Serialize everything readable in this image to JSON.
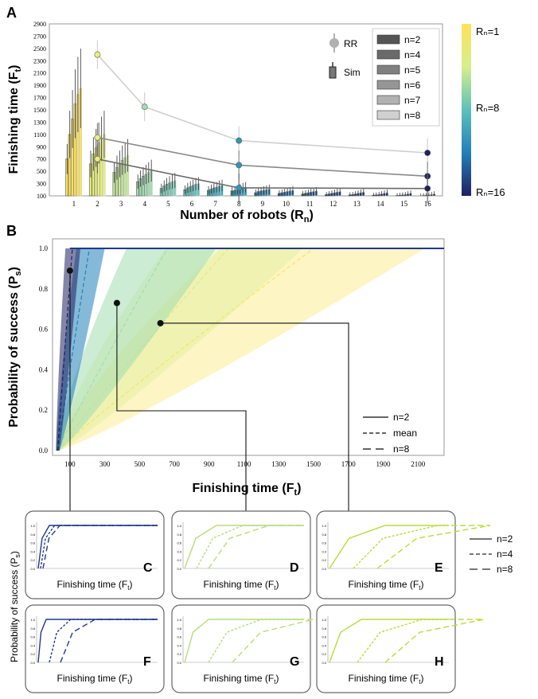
{
  "colors": {
    "viridis_like": [
      "#fde25a",
      "#e8f07a",
      "#c7e89a",
      "#a3dcb0",
      "#7fcfb8",
      "#5ec0bb",
      "#40aebd",
      "#2c97bc",
      "#2180b8",
      "#1c6aae",
      "#1a56a2",
      "#1a4595",
      "#1b3885",
      "#1d2e76",
      "#1e266a",
      "#1f2060"
    ],
    "rr_marker": "#b0b0b0",
    "grays": [
      "#555555",
      "#6a6a6a",
      "#808080",
      "#969696",
      "#b2b2b2",
      "#d0d0d0"
    ]
  },
  "panel_A": {
    "letter": "A",
    "ylabel": "Finishing time (F",
    "ylabel_sub": "t",
    "ylabel_end": ")",
    "xlabel": "Number of robots (R",
    "xlabel_sub": "n",
    "xlabel_end": ")",
    "legend_markers": [
      {
        "label": "RR"
      },
      {
        "label": "Sim"
      }
    ],
    "legend_n": [
      "n=2",
      "n=4",
      "n=5",
      "n=6",
      "n=7",
      "n=8"
    ],
    "colorbar_labels": [
      "Rₙ=1",
      "Rₙ=8",
      "Rₙ=16"
    ]
  },
  "panel_B": {
    "letter": "B",
    "ylabel": "Probability of success (P",
    "ylabel_sub": "s",
    "ylabel_end": ")",
    "xlabel": "Finishing time (F",
    "xlabel_sub": "t",
    "xlabel_end": ")",
    "legend": [
      "n=2",
      "mean",
      "n=8"
    ]
  },
  "small_panels": {
    "ylabel": "Probability of success (P",
    "ylabel_sub": "s",
    "ylabel_end": ")",
    "xlabel": "Finishing time (F",
    "xlabel_sub": "t",
    "xlabel_end": ")",
    "letters": [
      "C",
      "D",
      "E",
      "F",
      "G",
      "H"
    ],
    "legend": [
      "n=2",
      "n=4",
      "n=8"
    ]
  },
  "chart_data": [
    {
      "type": "bar",
      "panel": "A",
      "title": "",
      "xlabel": "Number of robots (Rn)",
      "ylabel": "Finishing time (Ft)",
      "categories": [
        "1",
        "2",
        "3",
        "4",
        "5",
        "6",
        "7",
        "8",
        "9",
        "10",
        "11",
        "12",
        "13",
        "14",
        "15",
        "16"
      ],
      "yticks": [
        100,
        300,
        500,
        700,
        900,
        1100,
        1300,
        1500,
        1700,
        1900,
        2100,
        2300,
        2500,
        2700,
        2900
      ],
      "ylim": [
        100,
        2900
      ],
      "series": [
        {
          "name": "n=2",
          "values": [
            700,
            620,
            480,
            330,
            220,
            200,
            190,
            180,
            150,
            140,
            130,
            120,
            115,
            110,
            105,
            100
          ]
        },
        {
          "name": "n=4",
          "values": [
            1100,
            780,
            560,
            380,
            260,
            230,
            210,
            190,
            170,
            150,
            140,
            130,
            120,
            115,
            110,
            105
          ]
        },
        {
          "name": "n=5",
          "values": [
            1350,
            880,
            620,
            420,
            290,
            250,
            230,
            200,
            180,
            160,
            150,
            140,
            130,
            120,
            115,
            110
          ]
        },
        {
          "name": "n=6",
          "values": [
            1600,
            960,
            680,
            450,
            310,
            270,
            240,
            215,
            190,
            170,
            160,
            150,
            140,
            130,
            120,
            115
          ]
        },
        {
          "name": "n=7",
          "values": [
            1750,
            1030,
            720,
            480,
            330,
            290,
            260,
            230,
            200,
            180,
            170,
            160,
            150,
            140,
            130,
            120
          ]
        },
        {
          "name": "n=8",
          "values": [
            1850,
            1100,
            760,
            510,
            350,
            300,
            270,
            240,
            210,
            190,
            180,
            170,
            160,
            150,
            140,
            130
          ]
        }
      ],
      "rr_lines": [
        {
          "x": [
            2,
            4,
            8,
            16
          ],
          "y": [
            2400,
            1550,
            1000,
            800
          ],
          "color": "#d0d0d0"
        },
        {
          "x": [
            2,
            8,
            16
          ],
          "y": [
            1050,
            600,
            420
          ],
          "color": "#8a8a8a"
        },
        {
          "x": [
            2,
            8,
            16
          ],
          "y": [
            700,
            230,
            220
          ],
          "color": "#6a6a6a"
        }
      ],
      "legend_placement": "top-right",
      "colorbar": {
        "min_label": "Rn=1",
        "mid_label": "Rn=8",
        "max_label": "Rn=16"
      }
    },
    {
      "type": "line",
      "panel": "B",
      "title": "",
      "xlabel": "Finishing time (Ft)",
      "ylabel": "Probability of success (Ps)",
      "xticks": [
        100,
        300,
        500,
        700,
        900,
        1100,
        1300,
        1500,
        1700,
        1900,
        2100
      ],
      "yticks": [
        0.0,
        0.2,
        0.4,
        0.6,
        0.8,
        1.0
      ],
      "xlim": [
        0,
        2250
      ],
      "ylim": [
        0,
        1.0
      ],
      "bands": [
        {
          "label": "Rn=16",
          "t_full": 120
        },
        {
          "label": "Rn=8",
          "t_full": 260
        },
        {
          "label": "Rn=4",
          "t_full": 900
        },
        {
          "label": "Rn=2",
          "t_full": 1400
        },
        {
          "label": "Rn=1",
          "t_full": 2100
        }
      ],
      "callouts": [
        {
          "x": 100,
          "y": 0.89,
          "target": "C"
        },
        {
          "x": 370,
          "y": 0.73,
          "target": "D"
        },
        {
          "x": 620,
          "y": 0.63,
          "target": "E"
        }
      ],
      "legend_placement": "bottom-right"
    }
  ]
}
